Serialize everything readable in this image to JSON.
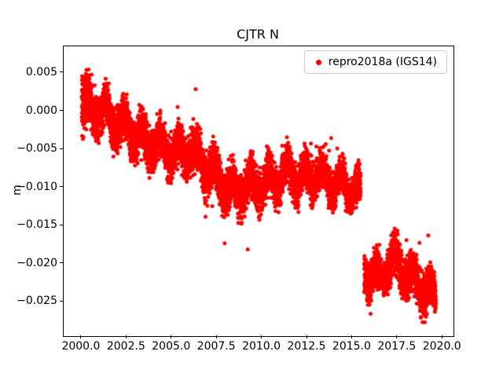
{
  "chart_data": {
    "type": "scatter",
    "title": "CJTR N",
    "xlabel": "",
    "ylabel": "m",
    "xlim": [
      1999.0,
      2020.6
    ],
    "ylim": [
      -0.0295,
      0.0085
    ],
    "xticks": [
      2000.0,
      2002.5,
      2005.0,
      2007.5,
      2010.0,
      2012.5,
      2015.0,
      2017.5,
      2020.0
    ],
    "xtick_labels": [
      "2000.0",
      "2002.5",
      "2005.0",
      "2007.5",
      "2010.0",
      "2012.5",
      "2015.0",
      "2017.5",
      "2020.0"
    ],
    "yticks": [
      0.005,
      0.0,
      -0.005,
      -0.01,
      -0.015,
      -0.02,
      -0.025
    ],
    "ytick_labels": [
      "0.005",
      "0.000",
      "−0.005",
      "−0.010",
      "−0.015",
      "−0.020",
      "−0.025"
    ],
    "grid": false,
    "legend_location": "upper right",
    "point_color": "#ff0000",
    "marker_radius_px": 2.5,
    "series": [
      {
        "name": "repro2018a (IGS14)",
        "x_start": 2000.0,
        "x_end": 2019.62,
        "samples_per_year": 365,
        "gaps": [
          [
            2015.45,
            2015.65
          ],
          [
            2016.62,
            2016.72
          ]
        ],
        "seasonal": {
          "amplitude": 0.0015,
          "period_years": 1.0,
          "phase": 0.12
        },
        "mean_profile": [
          [
            2000.0,
            0.0018
          ],
          [
            2000.15,
            0.0008
          ],
          [
            2000.5,
            0.0002
          ],
          [
            2001.0,
            0.0003
          ],
          [
            2001.3,
            -0.0002
          ],
          [
            2001.6,
            -0.0012
          ],
          [
            2002.0,
            -0.0013
          ],
          [
            2002.4,
            -0.002
          ],
          [
            2002.8,
            -0.0028
          ],
          [
            2003.2,
            -0.0035
          ],
          [
            2003.6,
            -0.0042
          ],
          [
            2004.0,
            -0.004
          ],
          [
            2004.5,
            -0.0048
          ],
          [
            2005.0,
            -0.005
          ],
          [
            2005.5,
            -0.0058
          ],
          [
            2006.0,
            -0.005
          ],
          [
            2006.5,
            -0.0065
          ],
          [
            2007.0,
            -0.0075
          ],
          [
            2007.5,
            -0.0085
          ],
          [
            2008.0,
            -0.01
          ],
          [
            2008.5,
            -0.0108
          ],
          [
            2009.0,
            -0.01
          ],
          [
            2009.5,
            -0.0097
          ],
          [
            2010.0,
            -0.0095
          ],
          [
            2010.5,
            -0.0092
          ],
          [
            2011.0,
            -0.0087
          ],
          [
            2011.5,
            -0.0078
          ],
          [
            2012.0,
            -0.009
          ],
          [
            2012.5,
            -0.0086
          ],
          [
            2013.0,
            -0.0082
          ],
          [
            2013.5,
            -0.009
          ],
          [
            2014.0,
            -0.0094
          ],
          [
            2014.5,
            -0.0096
          ],
          [
            2015.0,
            -0.01
          ],
          [
            2015.45,
            -0.0112
          ],
          [
            2015.65,
            -0.0205
          ],
          [
            2016.0,
            -0.0213
          ],
          [
            2016.5,
            -0.022
          ],
          [
            2016.9,
            -0.0205
          ],
          [
            2017.2,
            -0.0192
          ],
          [
            2017.5,
            -0.02
          ],
          [
            2018.0,
            -0.0213
          ],
          [
            2018.4,
            -0.0222
          ],
          [
            2018.8,
            -0.0228
          ],
          [
            2019.2,
            -0.0238
          ],
          [
            2019.62,
            -0.0245
          ]
        ],
        "spread_profile": [
          [
            2000.0,
            0.0021
          ],
          [
            2000.4,
            0.0016
          ],
          [
            2001.0,
            0.0013
          ],
          [
            2004.0,
            0.0013
          ],
          [
            2006.0,
            0.0014
          ],
          [
            2008.0,
            0.0014
          ],
          [
            2010.0,
            0.0013
          ],
          [
            2015.45,
            0.0012
          ],
          [
            2015.65,
            0.0013
          ],
          [
            2019.62,
            0.0013
          ]
        ]
      }
    ]
  }
}
